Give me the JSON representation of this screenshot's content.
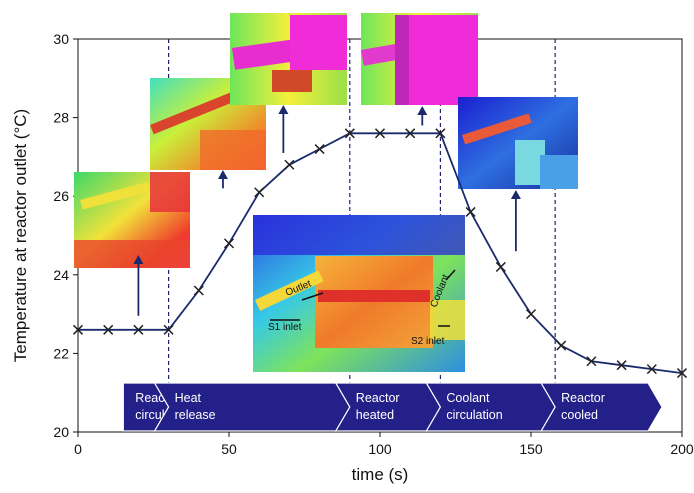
{
  "chart_data": {
    "type": "line",
    "title": "",
    "xlabel": "time (s)",
    "ylabel": "Temperature at reactor outlet (°C)",
    "xlim": [
      0,
      200
    ],
    "ylim": [
      20,
      30
    ],
    "xticks": [
      0,
      50,
      100,
      150,
      200
    ],
    "yticks": [
      20,
      22,
      24,
      26,
      28,
      30
    ],
    "grid": false,
    "series": [
      {
        "name": "",
        "marker": "x",
        "x": [
          0,
          10,
          20,
          30,
          40,
          50,
          60,
          70,
          80,
          90,
          100,
          110,
          120,
          130,
          140,
          150,
          160,
          170,
          180,
          190,
          200
        ],
        "y": [
          22.6,
          22.6,
          22.6,
          22.6,
          23.6,
          24.8,
          26.1,
          26.8,
          27.2,
          27.6,
          27.6,
          27.6,
          27.6,
          25.6,
          24.2,
          23.0,
          22.2,
          21.8,
          21.7,
          21.6,
          21.5
        ]
      }
    ],
    "phase_boundaries": [
      30,
      90,
      120,
      158
    ],
    "phases": [
      "Reactant circulation",
      "Heat release",
      "Reactor heated",
      "Coolant circulation",
      "Reactor cooled"
    ],
    "inset_labels": [
      "Outlet",
      "Coolant",
      "S1 inlet",
      "S2 inlet"
    ]
  },
  "colors": {
    "line": "#1a2a6c",
    "marker": "#222222",
    "boundary": "#1c2470",
    "phase_fill": "#24208a",
    "arrow": "#1a2a6c"
  }
}
